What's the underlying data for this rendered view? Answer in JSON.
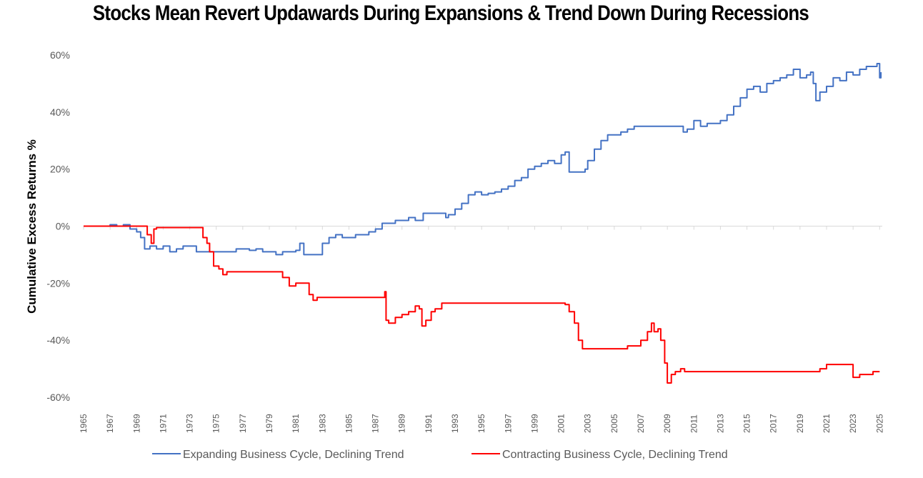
{
  "chart_data": {
    "type": "line",
    "title": "Stocks Mean Revert Updawards During Expansions & Trend Down During Recessions",
    "xlabel": "",
    "ylabel": "Cumulative Excess Returns %",
    "xlim": [
      1965,
      2025.2
    ],
    "ylim": [
      -60,
      60
    ],
    "yticks": [
      60,
      40,
      20,
      0,
      -20,
      -40,
      -60
    ],
    "ytick_labels": [
      "60%",
      "40%",
      "20%",
      "0%",
      "-20%",
      "-40%",
      "-60%"
    ],
    "xticks": [
      1965,
      1967,
      1969,
      1971,
      1973,
      1975,
      1977,
      1979,
      1981,
      1983,
      1985,
      1987,
      1989,
      1991,
      1993,
      1995,
      1997,
      1999,
      2001,
      2003,
      2005,
      2007,
      2009,
      2011,
      2013,
      2015,
      2017,
      2019,
      2021,
      2023,
      2025
    ],
    "xtick_labels": [
      "1965",
      "1967",
      "1969",
      "1971",
      "1973",
      "1975",
      "1977",
      "1979",
      "1981",
      "1983",
      "1985",
      "1987",
      "1989",
      "1991",
      "1993",
      "1995",
      "1997",
      "1999",
      "2001",
      "2003",
      "2005",
      "2007",
      "2009",
      "2011",
      "2013",
      "2015",
      "2017",
      "2019",
      "2021",
      "2023",
      "2025"
    ],
    "grid": false,
    "legend": "bottom",
    "series": [
      {
        "name": "Expanding Business Cycle, Declining Trend",
        "color": "#4472C4",
        "points": [
          [
            1965.0,
            0
          ],
          [
            1966.5,
            0
          ],
          [
            1967.0,
            0.5
          ],
          [
            1967.5,
            0
          ],
          [
            1968.0,
            0.5
          ],
          [
            1968.5,
            -1
          ],
          [
            1969.0,
            -2
          ],
          [
            1969.3,
            -4
          ],
          [
            1969.6,
            -8
          ],
          [
            1970.0,
            -7
          ],
          [
            1970.5,
            -8
          ],
          [
            1971.0,
            -7
          ],
          [
            1971.5,
            -9
          ],
          [
            1972.0,
            -8
          ],
          [
            1972.5,
            -7
          ],
          [
            1973.0,
            -7
          ],
          [
            1973.5,
            -9
          ],
          [
            1974.0,
            -9
          ],
          [
            1975.0,
            -9
          ],
          [
            1976.0,
            -9
          ],
          [
            1976.5,
            -8
          ],
          [
            1977.0,
            -8
          ],
          [
            1977.5,
            -8.5
          ],
          [
            1978.0,
            -8
          ],
          [
            1978.5,
            -9
          ],
          [
            1979.0,
            -9
          ],
          [
            1979.5,
            -10
          ],
          [
            1980.0,
            -9
          ],
          [
            1981.0,
            -8.5
          ],
          [
            1981.3,
            -6
          ],
          [
            1981.6,
            -10
          ],
          [
            1982.0,
            -10
          ],
          [
            1982.8,
            -10
          ],
          [
            1983.0,
            -6
          ],
          [
            1983.5,
            -4
          ],
          [
            1984.0,
            -3
          ],
          [
            1984.5,
            -4
          ],
          [
            1985.0,
            -4
          ],
          [
            1985.5,
            -3
          ],
          [
            1986.0,
            -3
          ],
          [
            1986.5,
            -2
          ],
          [
            1987.0,
            -1
          ],
          [
            1987.5,
            1
          ],
          [
            1988.0,
            1
          ],
          [
            1988.5,
            2
          ],
          [
            1989.0,
            2
          ],
          [
            1989.5,
            3
          ],
          [
            1990.0,
            2
          ],
          [
            1990.5,
            2
          ],
          [
            1990.6,
            4.5
          ],
          [
            1991.5,
            4.5
          ],
          [
            1992.0,
            4.5
          ],
          [
            1992.3,
            3
          ],
          [
            1992.5,
            4
          ],
          [
            1993.0,
            6
          ],
          [
            1993.5,
            8
          ],
          [
            1994.0,
            11
          ],
          [
            1994.5,
            12
          ],
          [
            1995.0,
            11
          ],
          [
            1995.5,
            11.5
          ],
          [
            1996.0,
            12
          ],
          [
            1996.5,
            13
          ],
          [
            1997.0,
            14
          ],
          [
            1997.5,
            16
          ],
          [
            1998.0,
            17
          ],
          [
            1998.5,
            20
          ],
          [
            1999.0,
            21
          ],
          [
            1999.5,
            22
          ],
          [
            2000.0,
            23
          ],
          [
            2000.5,
            22
          ],
          [
            2001.0,
            25
          ],
          [
            2001.3,
            26
          ],
          [
            2001.6,
            19
          ],
          [
            2002.0,
            19
          ],
          [
            2002.5,
            19
          ],
          [
            2002.8,
            20
          ],
          [
            2003.0,
            23
          ],
          [
            2003.5,
            27
          ],
          [
            2004.0,
            30
          ],
          [
            2004.5,
            32
          ],
          [
            2005.0,
            32
          ],
          [
            2005.5,
            33
          ],
          [
            2006.0,
            34
          ],
          [
            2006.5,
            35
          ],
          [
            2007.0,
            35
          ],
          [
            2009.0,
            35
          ],
          [
            2010.0,
            35
          ],
          [
            2010.2,
            33
          ],
          [
            2010.5,
            34
          ],
          [
            2011.0,
            37
          ],
          [
            2011.5,
            35
          ],
          [
            2012.0,
            36
          ],
          [
            2012.5,
            36
          ],
          [
            2013.0,
            37
          ],
          [
            2013.5,
            39
          ],
          [
            2014.0,
            42
          ],
          [
            2014.5,
            45
          ],
          [
            2015.0,
            48
          ],
          [
            2015.5,
            49
          ],
          [
            2016.0,
            47
          ],
          [
            2016.5,
            50
          ],
          [
            2017.0,
            51
          ],
          [
            2017.5,
            52
          ],
          [
            2018.0,
            53
          ],
          [
            2018.5,
            55
          ],
          [
            2019.0,
            52
          ],
          [
            2019.5,
            53
          ],
          [
            2019.8,
            54
          ],
          [
            2020.0,
            50
          ],
          [
            2020.2,
            44
          ],
          [
            2020.5,
            47
          ],
          [
            2021.0,
            49
          ],
          [
            2021.5,
            52
          ],
          [
            2022.0,
            51
          ],
          [
            2022.5,
            54
          ],
          [
            2023.0,
            53
          ],
          [
            2023.5,
            55
          ],
          [
            2024.0,
            56
          ],
          [
            2024.5,
            56
          ],
          [
            2024.8,
            57
          ],
          [
            2025.0,
            52
          ],
          [
            2025.1,
            54
          ]
        ]
      },
      {
        "name": "Contracting Business Cycle, Declining Trend",
        "color": "#FF0000",
        "points": [
          [
            1965.0,
            0
          ],
          [
            1969.5,
            0
          ],
          [
            1969.8,
            -3
          ],
          [
            1970.1,
            -6
          ],
          [
            1970.3,
            -1
          ],
          [
            1970.5,
            -0.5
          ],
          [
            1973.8,
            -0.5
          ],
          [
            1974.0,
            -4
          ],
          [
            1974.3,
            -6
          ],
          [
            1974.5,
            -9
          ],
          [
            1974.8,
            -14
          ],
          [
            1975.2,
            -15
          ],
          [
            1975.5,
            -17
          ],
          [
            1975.8,
            -16
          ],
          [
            1979.5,
            -16
          ],
          [
            1980.0,
            -18
          ],
          [
            1980.5,
            -21
          ],
          [
            1981.0,
            -20
          ],
          [
            1981.5,
            -20
          ],
          [
            1982.0,
            -24
          ],
          [
            1982.3,
            -26
          ],
          [
            1982.6,
            -25
          ],
          [
            1987.5,
            -25
          ],
          [
            1987.7,
            -23
          ],
          [
            1987.8,
            -33
          ],
          [
            1988.0,
            -34
          ],
          [
            1988.5,
            -32
          ],
          [
            1989.0,
            -31
          ],
          [
            1989.5,
            -30
          ],
          [
            1990.0,
            -28
          ],
          [
            1990.3,
            -29
          ],
          [
            1990.5,
            -35
          ],
          [
            1990.8,
            -33
          ],
          [
            1991.2,
            -30
          ],
          [
            1991.5,
            -29
          ],
          [
            1992.0,
            -27
          ],
          [
            2001.0,
            -27
          ],
          [
            2001.3,
            -27.5
          ],
          [
            2001.6,
            -30
          ],
          [
            2002.0,
            -34
          ],
          [
            2002.3,
            -40
          ],
          [
            2002.6,
            -43
          ],
          [
            2003.0,
            -43
          ],
          [
            2005.0,
            -43
          ],
          [
            2006.0,
            -42
          ],
          [
            2006.5,
            -42
          ],
          [
            2007.0,
            -40
          ],
          [
            2007.5,
            -37
          ],
          [
            2007.8,
            -34
          ],
          [
            2008.0,
            -37
          ],
          [
            2008.3,
            -36
          ],
          [
            2008.5,
            -40
          ],
          [
            2008.8,
            -48
          ],
          [
            2009.0,
            -55
          ],
          [
            2009.3,
            -52
          ],
          [
            2009.6,
            -51
          ],
          [
            2010.0,
            -50
          ],
          [
            2010.3,
            -51
          ],
          [
            2020.0,
            -51
          ],
          [
            2020.5,
            -50
          ],
          [
            2021.0,
            -48.5
          ],
          [
            2022.8,
            -48.5
          ],
          [
            2023.0,
            -53
          ],
          [
            2023.3,
            -53
          ],
          [
            2023.5,
            -52
          ],
          [
            2024.0,
            -52
          ],
          [
            2024.5,
            -51
          ],
          [
            2025.0,
            -51
          ]
        ]
      }
    ]
  }
}
